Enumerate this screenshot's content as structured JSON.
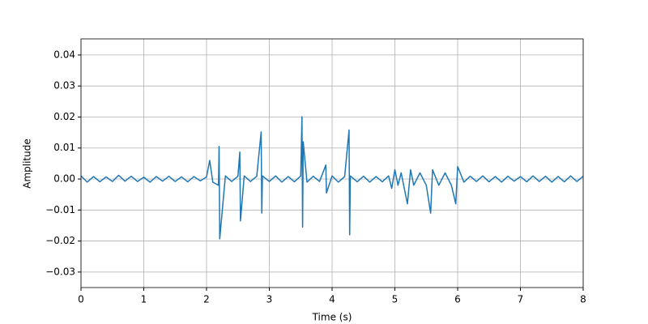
{
  "chart_data": {
    "type": "line",
    "xlabel": "Time (s)",
    "ylabel": "Amplitude",
    "x": [
      0,
      0.1,
      0.2,
      0.3,
      0.4,
      0.5,
      0.6,
      0.7,
      0.8,
      0.9,
      1.0,
      1.1,
      1.2,
      1.3,
      1.4,
      1.5,
      1.6,
      1.7,
      1.8,
      1.9,
      2.0,
      2.05,
      2.1,
      2.19,
      2.2,
      2.21,
      2.3,
      2.4,
      2.5,
      2.53,
      2.54,
      2.6,
      2.7,
      2.8,
      2.87,
      2.88,
      2.89,
      3.0,
      3.1,
      3.2,
      3.3,
      3.4,
      3.5,
      3.52,
      3.53,
      3.54,
      3.6,
      3.7,
      3.8,
      3.9,
      3.91,
      4.0,
      4.1,
      4.2,
      4.27,
      4.28,
      4.29,
      4.4,
      4.5,
      4.6,
      4.7,
      4.8,
      4.9,
      4.95,
      5.0,
      5.05,
      5.1,
      5.2,
      5.25,
      5.3,
      5.4,
      5.5,
      5.57,
      5.6,
      5.7,
      5.8,
      5.9,
      5.97,
      6.0,
      6.1,
      6.2,
      6.3,
      6.4,
      6.5,
      6.6,
      6.7,
      6.8,
      6.9,
      7.0,
      7.1,
      7.2,
      7.3,
      7.4,
      7.5,
      7.6,
      7.7,
      7.8,
      7.9,
      8.0
    ],
    "series": [
      {
        "color": "#1f77b4",
        "values": [
          0.001,
          -0.001,
          0.0008,
          -0.0009,
          0.0007,
          -0.0008,
          0.0012,
          -0.0007,
          0.0009,
          -0.0008,
          0.0006,
          -0.001,
          0.0008,
          -0.0007,
          0.0009,
          -0.0008,
          0.0007,
          -0.0009,
          0.0008,
          -0.0006,
          0.0007,
          0.006,
          -0.001,
          -0.002,
          0.0105,
          -0.0193,
          0.001,
          -0.0008,
          0.0009,
          0.0087,
          -0.0135,
          0.001,
          -0.0008,
          0.0009,
          0.0152,
          -0.011,
          0.001,
          -0.0008,
          0.001,
          -0.001,
          0.0008,
          -0.0009,
          0.001,
          0.0201,
          -0.0155,
          0.012,
          -0.001,
          0.0009,
          -0.0008,
          0.0045,
          -0.0045,
          0.001,
          -0.001,
          0.0008,
          0.0158,
          -0.018,
          0.001,
          -0.0009,
          0.0009,
          -0.001,
          0.0008,
          -0.0009,
          0.001,
          -0.003,
          0.003,
          -0.002,
          0.002,
          -0.008,
          0.003,
          -0.002,
          0.002,
          -0.002,
          -0.011,
          0.003,
          -0.002,
          0.002,
          -0.002,
          -0.008,
          0.004,
          -0.001,
          0.0009,
          -0.0008,
          0.001,
          -0.0009,
          0.0008,
          -0.001,
          0.0009,
          -0.0007,
          0.0008,
          -0.0009,
          0.001,
          -0.0008,
          0.0009,
          -0.001,
          0.0008,
          -0.0009,
          0.001,
          -0.0008,
          0.0009
        ]
      }
    ],
    "xlim": [
      0,
      8
    ],
    "xticks": [
      0,
      1,
      2,
      3,
      4,
      5,
      6,
      7,
      8
    ],
    "ylim": [
      -0.035,
      0.0452
    ],
    "yticks": [
      {
        "value": -0.03,
        "label": "−0.03"
      },
      {
        "value": -0.02,
        "label": "−0.02"
      },
      {
        "value": -0.01,
        "label": "−0.01"
      },
      {
        "value": 0,
        "label": "0.00"
      },
      0.01,
      0.02,
      0.03,
      0.04
    ],
    "grid": true
  }
}
